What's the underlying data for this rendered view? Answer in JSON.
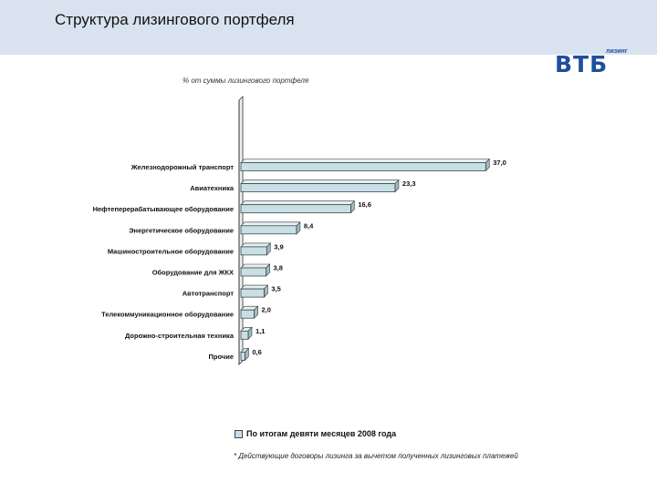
{
  "header": {
    "title": "Структура лизингового портфеля",
    "band_color": "#d9e2ef"
  },
  "logo": {
    "main": "ВТБ",
    "sub": "лизинг",
    "color": "#1d4f9c"
  },
  "subtitle": "% от суммы лизингового портфеля",
  "chart_data": {
    "type": "bar",
    "orientation": "horizontal",
    "categories": [
      "Железнодорожный транспорт",
      "Авиатехника",
      "Нефтеперерабатывающее оборудование",
      "Энергетическое оборудование",
      "Машиностроительное оборудование",
      "Оборудование для ЖКХ",
      "Автотранспорт",
      "Телекоммуникационное оборудование",
      "Дорожно-строительная техника",
      "Прочие"
    ],
    "series": [
      {
        "name": "По итогам девяти месяцев 2008 года",
        "values": [
          37.0,
          23.3,
          16.6,
          8.4,
          3.9,
          3.8,
          3.5,
          2.0,
          1.1,
          0.6
        ],
        "labels": [
          "37,0",
          "23,3",
          "16,6",
          "8,4",
          "3,9",
          "3,8",
          "3,5",
          "2,0",
          "1,1",
          "0,6"
        ]
      }
    ],
    "legend_position": "bottom",
    "bar_color": "#c7dfe6",
    "grid": false
  },
  "footnote": "* Действующие договоры лизинга за вычетом полученных лизинговых платежей"
}
